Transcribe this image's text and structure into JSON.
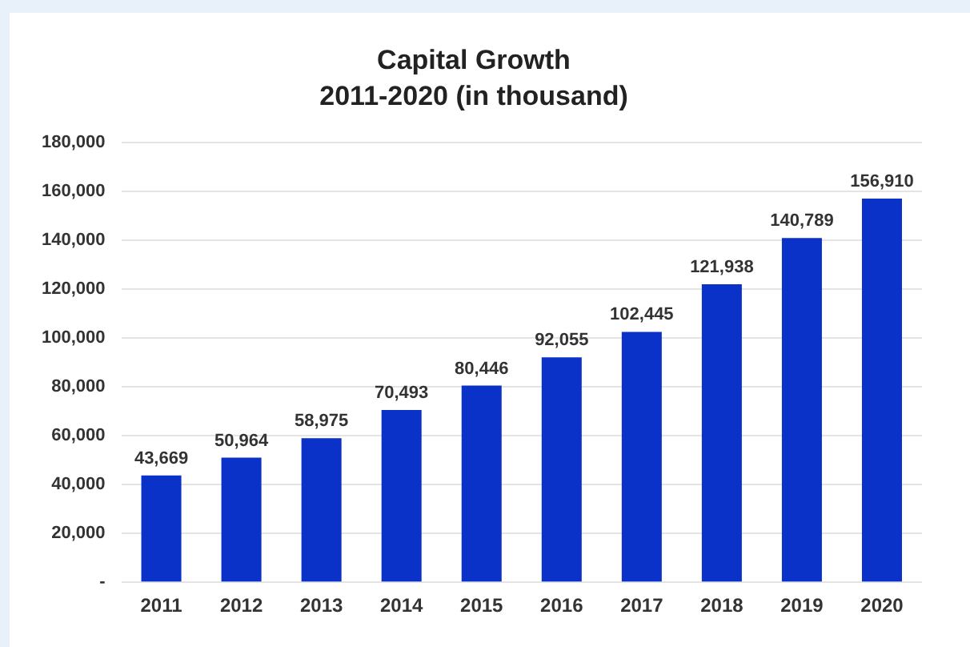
{
  "chart_data": {
    "type": "bar",
    "title": "Capital Growth",
    "subtitle": "2011-2020 (in thousand)",
    "categories": [
      "2011",
      "2012",
      "2013",
      "2014",
      "2015",
      "2016",
      "2017",
      "2018",
      "2019",
      "2020"
    ],
    "values": [
      43669,
      50964,
      58975,
      70493,
      80446,
      92055,
      102445,
      121938,
      140789,
      156910
    ],
    "value_labels": [
      "43,669",
      "50,964",
      "58,975",
      "70,493",
      "80,446",
      "92,055",
      "102,445",
      "121,938",
      "140,789",
      "156,910"
    ],
    "color": "#0b32c8",
    "ylim": [
      0,
      180000
    ],
    "yticks": [
      {
        "value": 0,
        "label": "-"
      },
      {
        "value": 20000,
        "label": "20,000"
      },
      {
        "value": 40000,
        "label": "40,000"
      },
      {
        "value": 60000,
        "label": "60,000"
      },
      {
        "value": 80000,
        "label": "80,000"
      },
      {
        "value": 100000,
        "label": "100,000"
      },
      {
        "value": 120000,
        "label": "120,000"
      },
      {
        "value": 140000,
        "label": "140,000"
      },
      {
        "value": 160000,
        "label": "160,000"
      },
      {
        "value": 180000,
        "label": "180,000"
      }
    ],
    "grid": "y"
  }
}
